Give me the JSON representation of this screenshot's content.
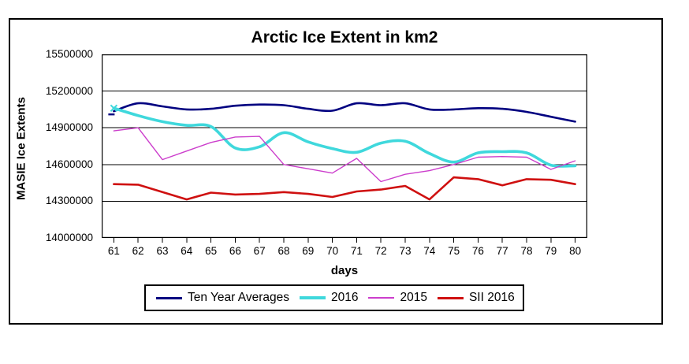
{
  "title": "Arctic Ice Extent in km2",
  "y_axis_title": "MASIE Ice Extents",
  "x_axis_title": "days",
  "chart_data": {
    "type": "line",
    "x": [
      61,
      62,
      63,
      64,
      65,
      66,
      67,
      68,
      69,
      70,
      71,
      72,
      73,
      74,
      75,
      76,
      77,
      78,
      79,
      80
    ],
    "series": [
      {
        "name": "Ten Year Averages",
        "color": "#000080",
        "line_width": 2.6,
        "smooth": true,
        "start_marker": "dash",
        "values": [
          15035000,
          15100000,
          15075000,
          15050000,
          15055000,
          15080000,
          15090000,
          15085000,
          15055000,
          15040000,
          15100000,
          15085000,
          15100000,
          15050000,
          15050000,
          15060000,
          15055000,
          15030000,
          14990000,
          14950000
        ]
      },
      {
        "name": "2016",
        "color": "#3FD8DC",
        "line_width": 3.6,
        "smooth": true,
        "start_marker": "x",
        "values": [
          15060000,
          15000000,
          14950000,
          14920000,
          14910000,
          14735000,
          14745000,
          14860000,
          14785000,
          14730000,
          14700000,
          14775000,
          14790000,
          14690000,
          14620000,
          14695000,
          14705000,
          14695000,
          14595000,
          14590000
        ]
      },
      {
        "name": "2015",
        "color": "#CC3ECC",
        "line_width": 1.4,
        "smooth": false,
        "start_marker": null,
        "values": [
          14875000,
          14900000,
          14640000,
          14710000,
          14780000,
          14825000,
          14830000,
          14600000,
          14565000,
          14530000,
          14650000,
          14460000,
          14520000,
          14550000,
          14600000,
          14660000,
          14665000,
          14660000,
          14560000,
          14630000
        ]
      },
      {
        "name": "SII 2016",
        "color": "#CF1010",
        "line_width": 2.6,
        "smooth": false,
        "start_marker": null,
        "values": [
          14440000,
          14435000,
          14375000,
          14315000,
          14370000,
          14355000,
          14360000,
          14375000,
          14360000,
          14335000,
          14380000,
          14395000,
          14425000,
          14315000,
          14495000,
          14480000,
          14430000,
          14480000,
          14475000,
          14440000
        ]
      }
    ],
    "ylim": [
      14000000,
      15500000
    ],
    "y_ticks": [
      14000000,
      14300000,
      14600000,
      14900000,
      15200000,
      15500000
    ],
    "grid": "horizontal",
    "legend_position": "bottom"
  }
}
